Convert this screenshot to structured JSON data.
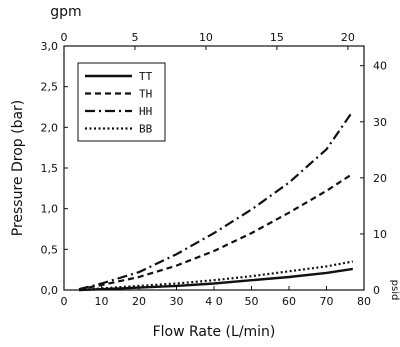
{
  "chart_data": {
    "type": "line",
    "xlabel": "Flow Rate (L/min)",
    "ylabel": "Pressure Drop (bar)",
    "top_axis": {
      "label": "gpm",
      "ticks": [
        "0",
        "5",
        "10",
        "15",
        "20"
      ],
      "values": [
        0,
        5,
        10,
        15,
        20
      ]
    },
    "right_axis": {
      "label": "psid",
      "ticks": [
        "0",
        "10",
        "20",
        "30",
        "40"
      ],
      "values": [
        0,
        10,
        20,
        30,
        40
      ]
    },
    "x_ticks": [
      "0",
      "10",
      "20",
      "30",
      "4 0",
      "50",
      "60",
      "70",
      "80"
    ],
    "x_tick_values": [
      0,
      10,
      20,
      30,
      40,
      50,
      60,
      70,
      80
    ],
    "y_ticks": [
      "0,0",
      "0,5",
      "1,0",
      "1,5",
      "2,0",
      "2,5",
      "3,0"
    ],
    "y_tick_values": [
      0,
      0.5,
      1.0,
      1.5,
      2.0,
      2.5,
      3.0
    ],
    "xlim": [
      0,
      80
    ],
    "ylim": [
      0,
      3.0
    ],
    "grid": false,
    "legend_position": "top-left",
    "series": [
      {
        "name": "TT",
        "style": "solid",
        "x": [
          4,
          10,
          20,
          30,
          40,
          50,
          60,
          70,
          77
        ],
        "y": [
          0.0,
          0.01,
          0.03,
          0.05,
          0.08,
          0.12,
          0.16,
          0.21,
          0.26
        ]
      },
      {
        "name": "TH",
        "style": "dashed",
        "x": [
          4,
          10,
          20,
          30,
          40,
          50,
          60,
          70,
          77
        ],
        "y": [
          0.01,
          0.06,
          0.16,
          0.3,
          0.48,
          0.7,
          0.95,
          1.22,
          1.43
        ]
      },
      {
        "name": "HH",
        "style": "dashdot",
        "x": [
          4,
          10,
          20,
          30,
          40,
          50,
          60,
          70,
          77
        ],
        "y": [
          0.01,
          0.08,
          0.22,
          0.44,
          0.7,
          0.99,
          1.32,
          1.73,
          2.2
        ]
      },
      {
        "name": "BB",
        "style": "dotted",
        "x": [
          4,
          10,
          20,
          30,
          40,
          50,
          60,
          70,
          77
        ],
        "y": [
          0.0,
          0.02,
          0.05,
          0.08,
          0.12,
          0.17,
          0.23,
          0.29,
          0.35
        ]
      }
    ]
  }
}
